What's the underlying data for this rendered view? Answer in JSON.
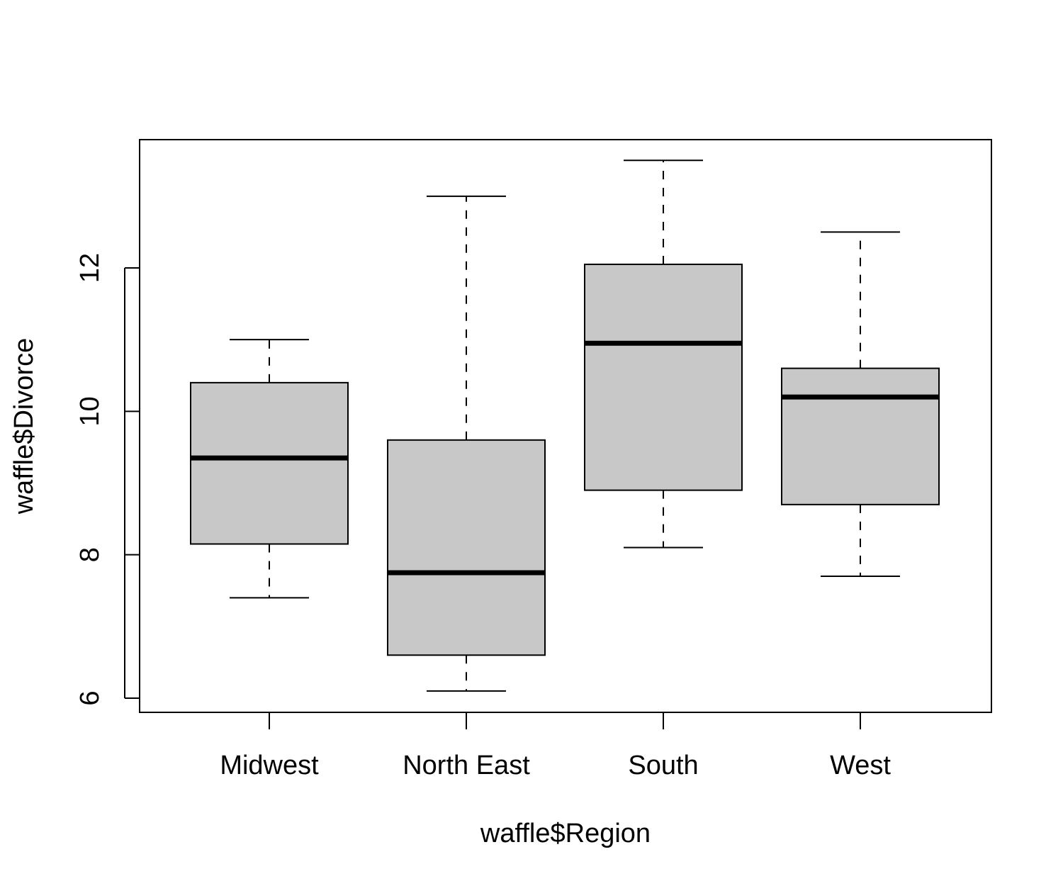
{
  "chart_data": {
    "type": "boxplot",
    "title": "",
    "xlabel": "waffle$Region",
    "ylabel": "waffle$Divorce",
    "categories": [
      "Midwest",
      "North East",
      "South",
      "West"
    ],
    "boxes": [
      {
        "category": "Midwest",
        "whisker_low": 7.4,
        "q1": 8.15,
        "median": 9.35,
        "q3": 10.4,
        "whisker_high": 11.0
      },
      {
        "category": "North East",
        "whisker_low": 6.1,
        "q1": 6.6,
        "median": 7.75,
        "q3": 9.6,
        "whisker_high": 13.0
      },
      {
        "category": "South",
        "whisker_low": 8.1,
        "q1": 8.9,
        "median": 10.95,
        "q3": 12.05,
        "whisker_high": 13.5
      },
      {
        "category": "West",
        "whisker_low": 7.7,
        "q1": 8.7,
        "median": 10.2,
        "q3": 10.6,
        "whisker_high": 12.5
      }
    ],
    "yticks": [
      6,
      8,
      10,
      12
    ],
    "ylim": [
      5.8,
      13.8
    ],
    "grid": false,
    "legend": "none",
    "colors": {
      "box_fill": "#c8c8c8",
      "stroke": "#000000",
      "background": "#ffffff"
    }
  }
}
